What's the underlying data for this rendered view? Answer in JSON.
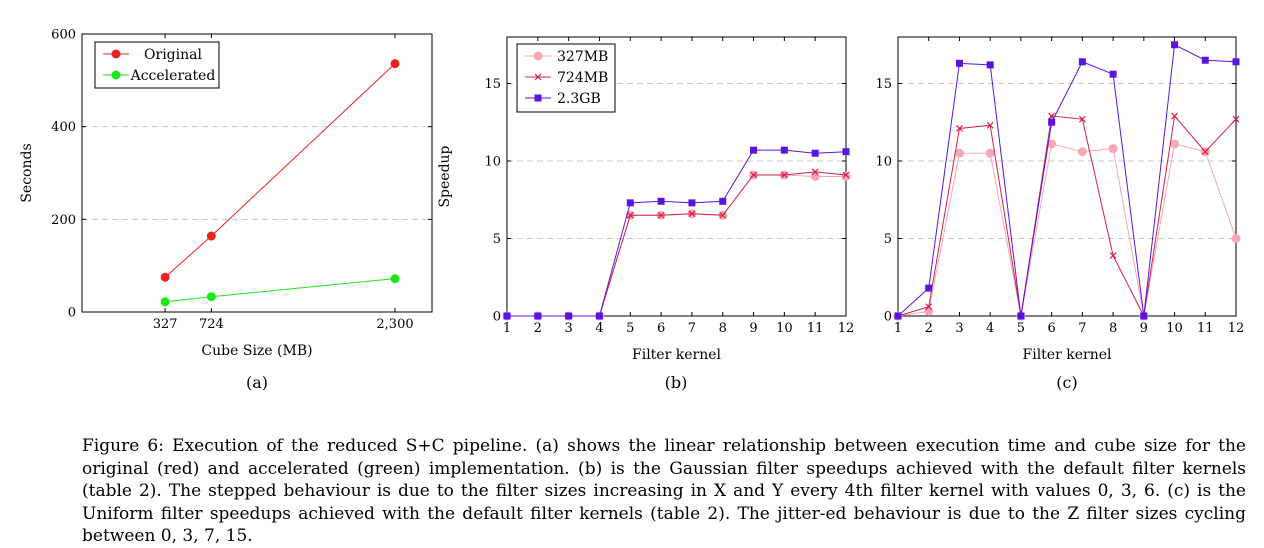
{
  "chart_data": [
    {
      "type": "line",
      "subcaption": "(a)",
      "xlabel": "Cube Size (MB)",
      "ylabel": "Seconds",
      "x": [
        327,
        724,
        2300
      ],
      "xticks": [
        "327",
        "724",
        "2,300"
      ],
      "xlim": [
        0,
        2300
      ],
      "ylim": [
        0,
        600
      ],
      "yticks": [
        "0",
        "200",
        "400",
        "600"
      ],
      "grid": "horizontal-dashed",
      "legend_position": "top-left",
      "series": [
        {
          "name": "Original",
          "values": [
            75,
            164,
            536
          ],
          "color": "#e8231f",
          "marker": "circle"
        },
        {
          "name": "Accelerated",
          "values": [
            22,
            33,
            72
          ],
          "color": "#1ae81a",
          "marker": "circle"
        }
      ]
    },
    {
      "type": "line",
      "subcaption": "(b)",
      "xlabel": "Filter kernel",
      "ylabel": "Speedup",
      "x": [
        1,
        2,
        3,
        4,
        5,
        6,
        7,
        8,
        9,
        10,
        11,
        12
      ],
      "xlim": [
        1,
        12
      ],
      "ylim": [
        0,
        18
      ],
      "yticks": [
        "0",
        "5",
        "10",
        "15"
      ],
      "grid": "horizontal-dashed",
      "legend_position": "top-left",
      "series": [
        {
          "name": "327MB",
          "values": [
            0,
            0,
            0,
            0,
            6.5,
            6.5,
            6.6,
            6.5,
            9.1,
            9.1,
            9.0,
            9.0
          ],
          "color": "#f7a8b4",
          "marker": "circle"
        },
        {
          "name": "724MB",
          "values": [
            0,
            0,
            0,
            0,
            6.5,
            6.5,
            6.6,
            6.5,
            9.1,
            9.1,
            9.3,
            9.1
          ],
          "color": "#d81e4a",
          "marker": "x"
        },
        {
          "name": "2.3GB",
          "values": [
            0,
            0,
            0,
            0,
            7.3,
            7.4,
            7.3,
            7.4,
            10.7,
            10.7,
            10.5,
            10.6
          ],
          "color": "#5a14e0",
          "marker": "square"
        }
      ]
    },
    {
      "type": "line",
      "subcaption": "(c)",
      "xlabel": "Filter kernel",
      "ylabel": "",
      "x": [
        1,
        2,
        3,
        4,
        5,
        6,
        7,
        8,
        9,
        10,
        11,
        12
      ],
      "xlim": [
        1,
        12
      ],
      "ylim": [
        0,
        18
      ],
      "yticks": [
        "0",
        "5",
        "10",
        "15"
      ],
      "grid": "horizontal-dashed",
      "series": [
        {
          "name": "327MB",
          "values": [
            0,
            0.3,
            10.5,
            10.5,
            0,
            11.1,
            10.6,
            10.8,
            0,
            11.1,
            10.6,
            5.0
          ],
          "color": "#f7a8b4",
          "marker": "circle"
        },
        {
          "name": "724MB",
          "values": [
            0,
            0.6,
            12.1,
            12.3,
            0,
            12.9,
            12.7,
            3.9,
            0,
            12.9,
            10.6,
            12.7
          ],
          "color": "#d81e4a",
          "marker": "x"
        },
        {
          "name": "2.3GB",
          "values": [
            0,
            1.8,
            16.3,
            16.2,
            0,
            12.5,
            16.4,
            15.6,
            0,
            17.5,
            16.5,
            16.4
          ],
          "color": "#5a14e0",
          "marker": "square"
        }
      ]
    }
  ],
  "caption": "Figure 6: Execution of the reduced S+C pipeline. (a) shows the linear relationship between execution time and cube size for the original (red) and accelerated (green) implementation. (b) is the Gaussian filter speedups achieved with the default filter kernels (table 2). The stepped behaviour is due to the filter sizes increasing in X and Y every 4th filter kernel with values 0, 3, 6. (c) is the Uniform filter speedups achieved with the default filter kernels (table 2). The jitter-ed behaviour is due to the Z filter sizes cycling between 0, 3, 7, 15."
}
